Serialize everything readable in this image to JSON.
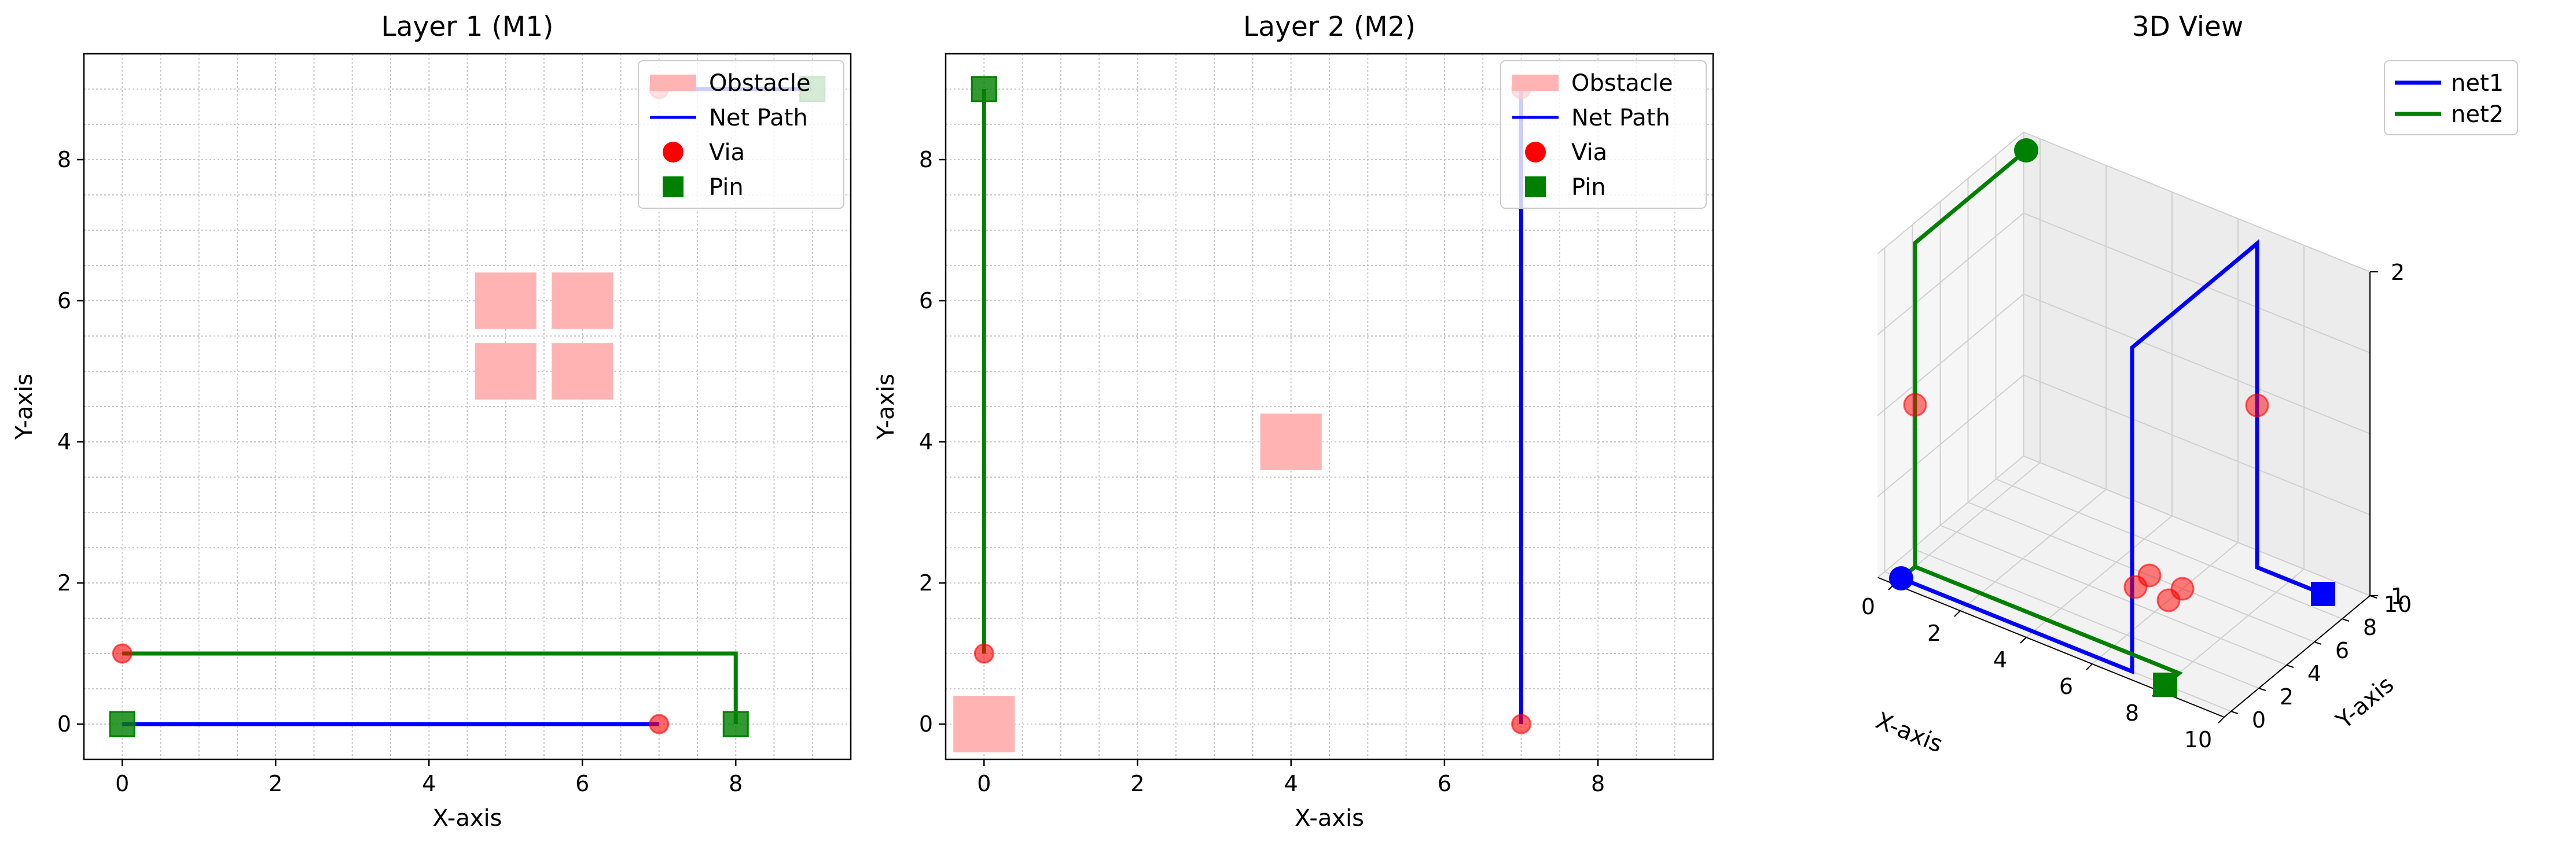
{
  "chart_data": [
    {
      "type": "scatter",
      "title": "Layer 1 (M1)",
      "xlabel": "X-axis",
      "ylabel": "Y-axis",
      "xlim": [
        -0.5,
        9.5
      ],
      "ylim": [
        -0.5,
        9.5
      ],
      "xticks": [
        0,
        2,
        4,
        6,
        8
      ],
      "yticks": [
        0,
        2,
        4,
        6,
        8
      ],
      "grid": true,
      "legend_position": "top-right",
      "legend": [
        {
          "label": "Obstacle",
          "kind": "patch",
          "color": "#ffb3b3"
        },
        {
          "label": "Net Path",
          "kind": "line",
          "color": "#0000ff"
        },
        {
          "label": "Via",
          "kind": "circle",
          "color": "#ff0000"
        },
        {
          "label": "Pin",
          "kind": "square",
          "color": "#008000"
        }
      ],
      "obstacles": [
        {
          "x": 4.6,
          "y": 5.6,
          "w": 0.8,
          "h": 0.8
        },
        {
          "x": 5.6,
          "y": 5.6,
          "w": 0.8,
          "h": 0.8
        },
        {
          "x": 4.6,
          "y": 4.6,
          "w": 0.8,
          "h": 0.8
        },
        {
          "x": 5.6,
          "y": 4.6,
          "w": 0.8,
          "h": 0.8
        }
      ],
      "paths": [
        {
          "color": "#0000ff",
          "points": [
            [
              0,
              0
            ],
            [
              7,
              0
            ]
          ]
        },
        {
          "color": "#0000ff",
          "points": [
            [
              7,
              9
            ],
            [
              9,
              9
            ]
          ]
        },
        {
          "color": "#008000",
          "points": [
            [
              0,
              1
            ],
            [
              8,
              1
            ],
            [
              8,
              0
            ]
          ]
        }
      ],
      "vias": [
        [
          0,
          1
        ],
        [
          7,
          0
        ],
        [
          7,
          9
        ]
      ],
      "pins": [
        {
          "x": 0,
          "y": 0,
          "color": "#008000"
        },
        {
          "x": 8,
          "y": 0,
          "color": "#008000"
        },
        {
          "x": 9,
          "y": 9,
          "color": "#008000"
        }
      ]
    },
    {
      "type": "scatter",
      "title": "Layer 2 (M2)",
      "xlabel": "X-axis",
      "ylabel": "Y-axis",
      "xlim": [
        -0.5,
        9.5
      ],
      "ylim": [
        -0.5,
        9.5
      ],
      "xticks": [
        0,
        2,
        4,
        6,
        8
      ],
      "yticks": [
        0,
        2,
        4,
        6,
        8
      ],
      "grid": true,
      "legend_position": "top-right",
      "legend": [
        {
          "label": "Obstacle",
          "kind": "patch",
          "color": "#ffb3b3"
        },
        {
          "label": "Net Path",
          "kind": "line",
          "color": "#0000ff"
        },
        {
          "label": "Via",
          "kind": "circle",
          "color": "#ff0000"
        },
        {
          "label": "Pin",
          "kind": "square",
          "color": "#008000"
        }
      ],
      "obstacles": [
        {
          "x": -0.4,
          "y": -0.4,
          "w": 0.8,
          "h": 0.8
        },
        {
          "x": 3.6,
          "y": 3.6,
          "w": 0.8,
          "h": 0.8
        }
      ],
      "paths": [
        {
          "color": "#008000",
          "points": [
            [
              0,
              9
            ],
            [
              0,
              1
            ]
          ]
        },
        {
          "color": "#0000ff",
          "points": [
            [
              7,
              9
            ],
            [
              7,
              0
            ]
          ]
        }
      ],
      "vias": [
        [
          0,
          1
        ],
        [
          7,
          0
        ],
        [
          7,
          9
        ]
      ],
      "pins": [
        {
          "x": 0,
          "y": 9,
          "color": "#008000"
        }
      ]
    },
    {
      "type": "line",
      "title": "3D View",
      "xlabel": "X-axis",
      "ylabel": "Y-axis",
      "zlabel": "",
      "xticks": [
        0,
        2,
        4,
        6,
        8,
        10
      ],
      "yticks": [
        0,
        2,
        4,
        6,
        8,
        10
      ],
      "zticks": [
        1,
        2
      ],
      "legend_position": "top-right",
      "series": [
        {
          "name": "net1",
          "color": "#0000ff",
          "points": [
            [
              0,
              0,
              1
            ],
            [
              7,
              0,
              1
            ],
            [
              7,
              0,
              2
            ],
            [
              7,
              9,
              2
            ],
            [
              7,
              9,
              1
            ],
            [
              9,
              9,
              1
            ]
          ]
        },
        {
          "name": "net2",
          "color": "#008000",
          "points": [
            [
              0,
              0,
              1
            ],
            [
              0,
              1,
              1
            ],
            [
              8,
              1,
              1
            ],
            [
              8,
              0,
              1
            ]
          ]
        },
        {
          "name": "net2",
          "color": "#008000",
          "points": [
            [
              0,
              1,
              1
            ],
            [
              0,
              1,
              2
            ],
            [
              0,
              9,
              2
            ]
          ]
        }
      ],
      "endpoints": [
        {
          "x": 0,
          "y": 0,
          "z": 1,
          "color": "#0000ff",
          "shape": "circle"
        },
        {
          "x": 9,
          "y": 9,
          "z": 1,
          "color": "#0000ff",
          "shape": "square"
        },
        {
          "x": 0,
          "y": 9,
          "z": 2,
          "color": "#008000",
          "shape": "circle"
        },
        {
          "x": 8,
          "y": 0,
          "z": 1,
          "color": "#008000",
          "shape": "square"
        }
      ],
      "vias": [
        [
          0,
          1,
          1.5
        ],
        [
          7,
          9,
          1.5
        ],
        [
          5,
          5,
          1
        ],
        [
          6,
          5,
          1
        ],
        [
          5,
          6,
          1
        ],
        [
          6,
          6,
          1
        ]
      ]
    }
  ]
}
